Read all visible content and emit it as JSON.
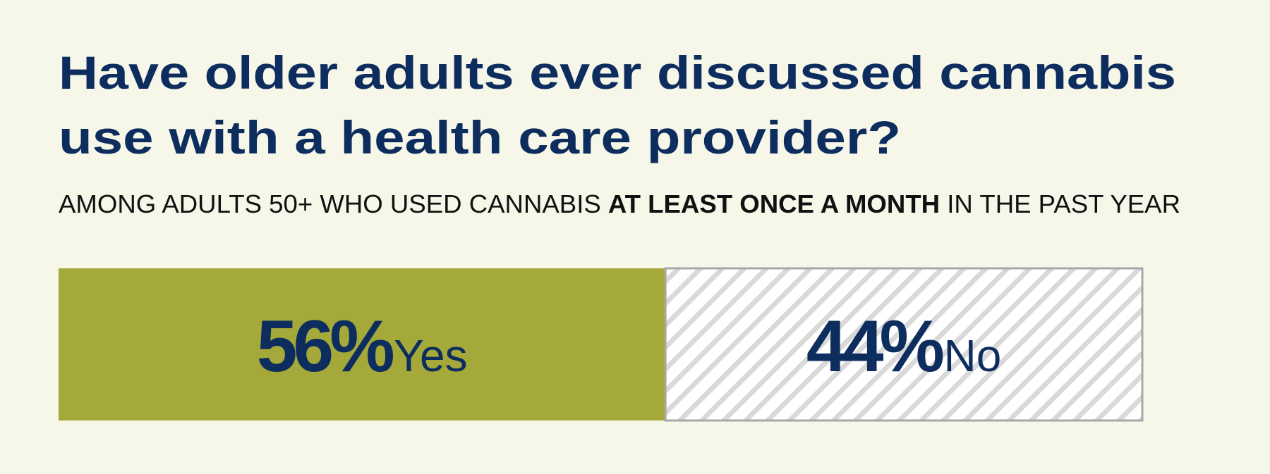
{
  "chart_data": {
    "type": "stacked-bar",
    "title": [
      "Have older adults ever discussed cannabis",
      "use with a health care provider?"
    ],
    "subtitle": [
      "AMONG ADULTS 50+ WHO USED CANNABIS",
      "AT LEAST ONCE A MONTH",
      "IN THE PAST YEAR"
    ],
    "xlim": [
      0,
      100
    ],
    "series": [
      {
        "name": "Yes",
        "color": "#a4a93a",
        "values": [
          56
        ],
        "value_labels": [
          "56%"
        ]
      },
      {
        "name": "No",
        "color": "#d9d9d9",
        "pattern": "hatch",
        "values": [
          44
        ],
        "value_labels": [
          "44%"
        ]
      }
    ]
  }
}
